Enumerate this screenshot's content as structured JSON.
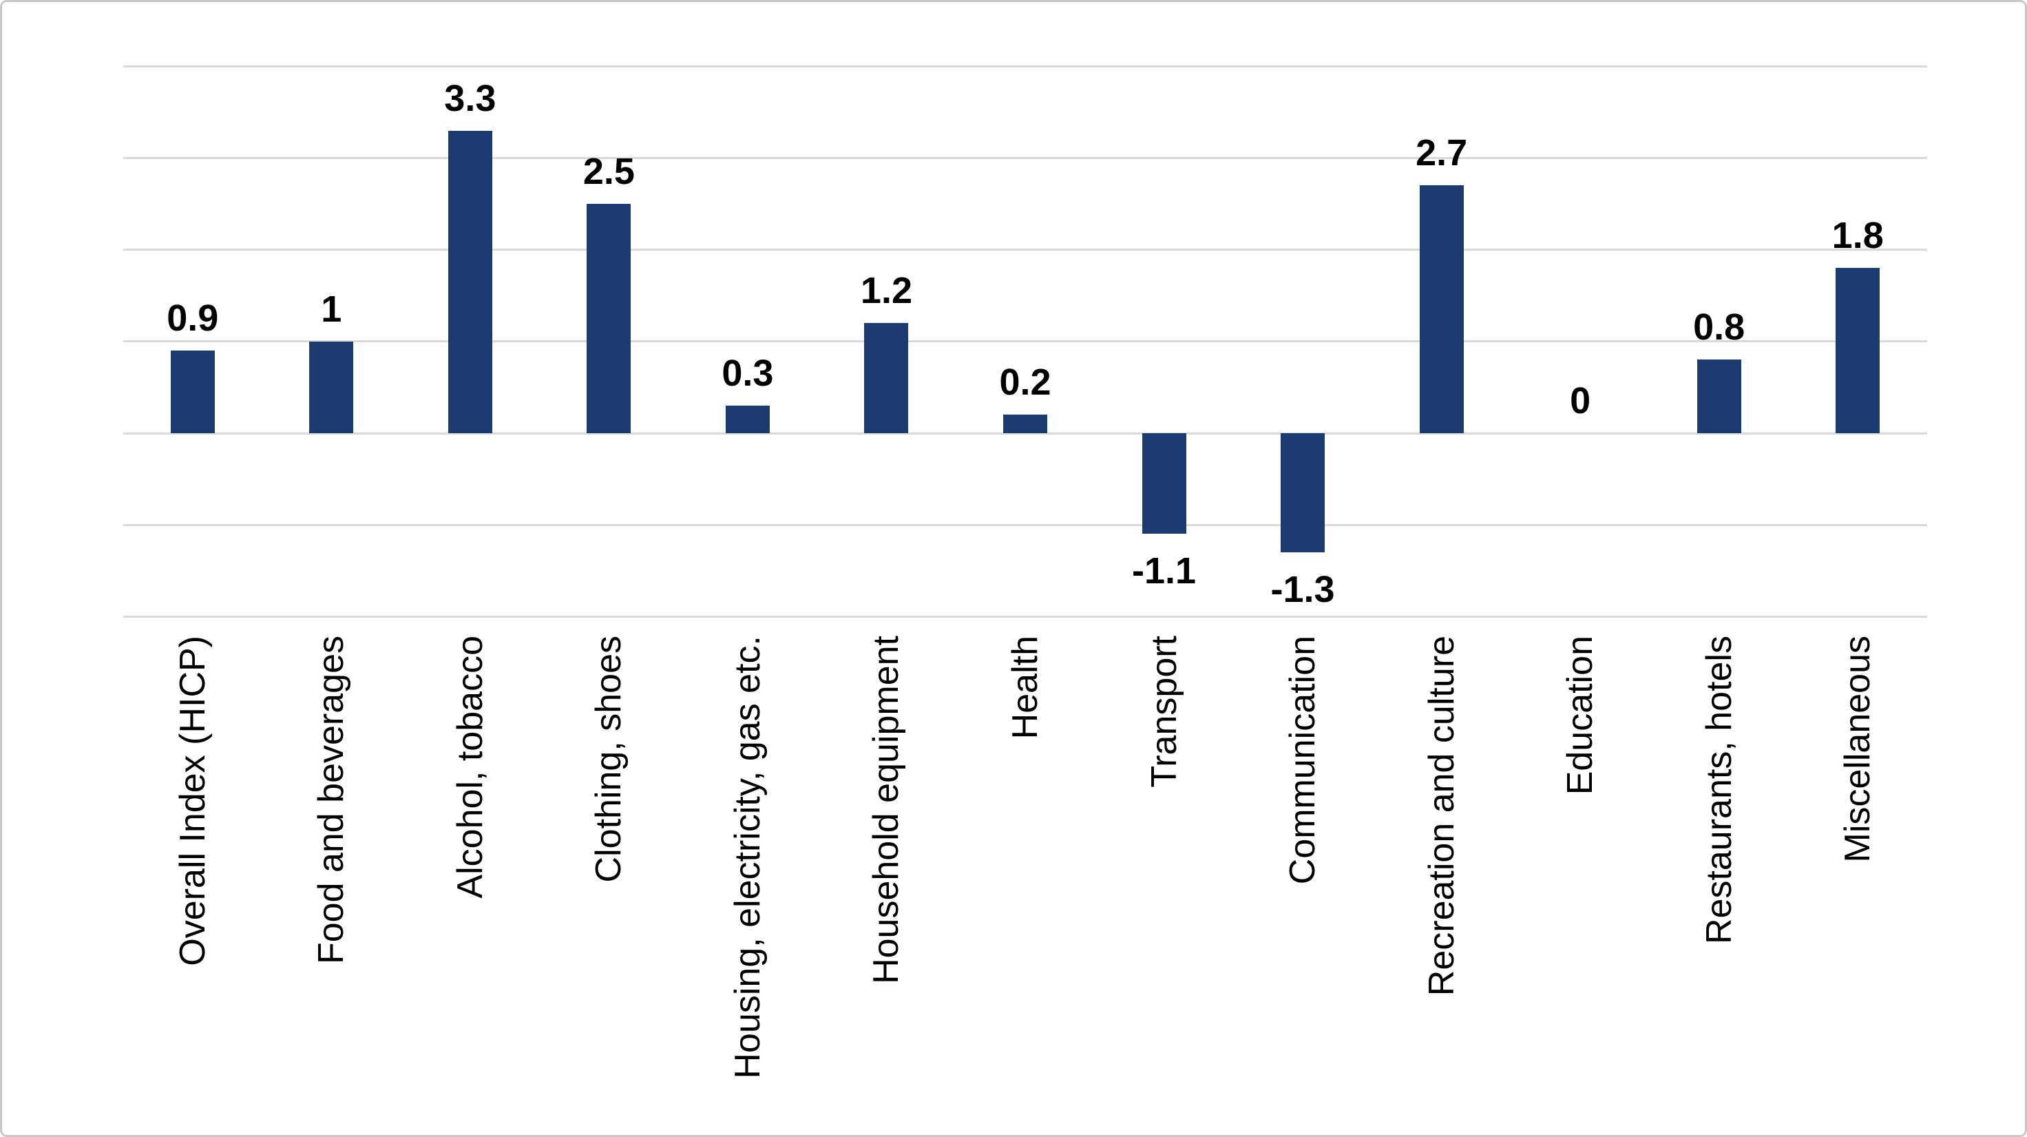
{
  "chart_data": {
    "type": "bar",
    "categories": [
      "Overall Index (HICP)",
      "Food and beverages",
      "Alcohol, tobacco",
      "Clothing, shoes",
      "Housing, electricity, gas etc.",
      "Household equipment",
      "Health",
      "Transport",
      "Communication",
      "Recreation and culture",
      "Education",
      "Restaurants, hotels",
      "Miscellaneous"
    ],
    "values": [
      0.9,
      1,
      3.3,
      2.5,
      0.3,
      1.2,
      0.2,
      -1.1,
      -1.3,
      2.7,
      0,
      0.8,
      1.8
    ],
    "value_labels": [
      "0.9",
      "1",
      "3.3",
      "2.5",
      "0.3",
      "1.2",
      "0.2",
      "-1.1",
      "-1.3",
      "2.7",
      "0",
      "0.8",
      "1.8"
    ],
    "title": "",
    "xlabel": "",
    "ylabel": "",
    "ylim": [
      -2,
      4
    ],
    "y_gridline_interval": 1,
    "grid": true,
    "legend": false,
    "bar_color": "#1C3B70",
    "gridline_color": "#D9D9D9",
    "text_color": "#000000",
    "background_color": "#FFFFFF",
    "border_color": "#C8C8C8"
  }
}
